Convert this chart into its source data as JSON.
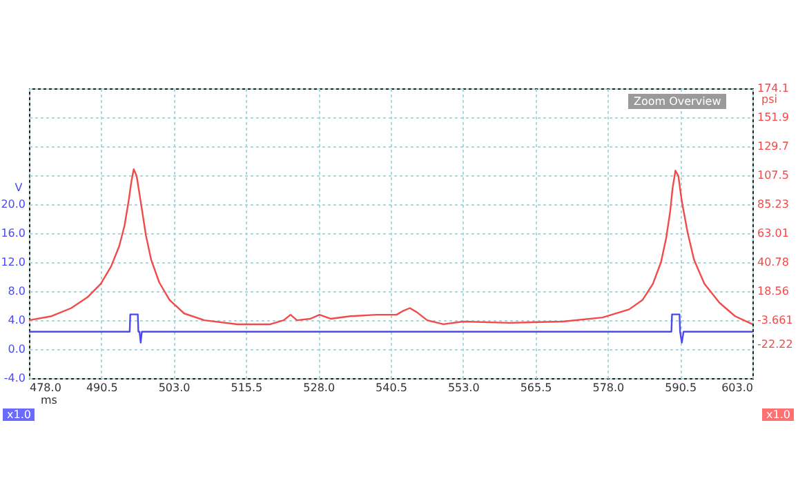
{
  "chart_data": {
    "type": "line",
    "xlabel": "ms",
    "ylabel": "V",
    "y2label": "psi",
    "annotations": [
      "Zoom Overview",
      "x1.0",
      "x1.0"
    ],
    "xlim": [
      478,
      603
    ],
    "xticks": [
      {
        "value": 478,
        "label": "478.0"
      },
      490.5,
      {
        "value": 503,
        "label": "503.0"
      },
      515.5,
      {
        "value": 528,
        "label": "528.0"
      },
      540.5,
      {
        "value": 553,
        "label": "553.0"
      },
      565.5,
      {
        "value": 578,
        "label": "578.0"
      },
      590.5,
      {
        "value": 603,
        "label": "603.0"
      }
    ],
    "ylim": [
      -4,
      36
    ],
    "yticks": [
      {
        "value": -4,
        "label": "-4.0"
      },
      {
        "value": 0,
        "label": "0.0"
      },
      {
        "value": 4,
        "label": "4.0"
      },
      {
        "value": 8,
        "label": "8.0"
      },
      {
        "value": 12,
        "label": "12.0"
      },
      {
        "value": 16,
        "label": "16.0"
      },
      {
        "value": 20,
        "label": "20.0"
      },
      {
        "value": 24,
        "label": null
      },
      {
        "value": 28,
        "label": null
      },
      {
        "value": 32,
        "label": null
      },
      {
        "value": 36,
        "label": null
      }
    ],
    "y2lim": [
      -48.1,
      174.1
    ],
    "y2ticks": [
      -22.22,
      -3.661,
      18.56,
      40.78,
      63.01,
      85.23,
      107.5,
      129.7,
      151.9,
      174.1
    ],
    "grid": true,
    "marker": "none",
    "line_style": "solid",
    "series": [
      {
        "color": "#f04a4a",
        "axis": "y2",
        "x": [
          478,
          481.9,
          485.3,
          488.1,
          490.4,
          492.2,
          493.6,
          494.5,
          495.2,
          495.7,
          496.1,
          496.6,
          497.3,
          498.2,
          499.1,
          500.5,
          502.3,
          504.8,
          508.3,
          514.0,
          519.7,
          522.0,
          523.2,
          524.3,
          526.6,
          528.2,
          530.1,
          533.5,
          538.1,
          541.5,
          542.7,
          543.8,
          545.0,
          546.8,
          549.6,
          553.0,
          561.0,
          570.2,
          577.1,
          581.7,
          584.0,
          585.8,
          587.2,
          588.1,
          588.8,
          589.2,
          589.7,
          590.2,
          590.8,
          591.8,
          592.9,
          594.7,
          597.3,
          600.0,
          603.0
        ],
        "values": [
          -3.7,
          -0.6,
          5.6,
          13.9,
          24.2,
          37.7,
          53.2,
          68.7,
          87.3,
          102.8,
          112.1,
          106.9,
          87.3,
          61.4,
          42.8,
          25.3,
          11.8,
          1.5,
          -3.7,
          -6.8,
          -6.8,
          -3.7,
          0.5,
          -3.7,
          -2.6,
          0.5,
          -2.6,
          -0.6,
          0.5,
          0.5,
          3.6,
          5.6,
          2.5,
          -3.7,
          -6.8,
          -4.7,
          -5.7,
          -4.7,
          -1.6,
          4.6,
          11.8,
          24.2,
          40.8,
          59.4,
          80.1,
          97.6,
          111.0,
          106.9,
          87.3,
          63.5,
          42.8,
          24.2,
          9.7,
          -0.6,
          -6.8
        ]
      },
      {
        "color": "#4a4af0",
        "x": [
          478,
          495.4,
          495.5,
          496.8,
          496.9,
          497.1,
          497.3,
          497.5,
          589.0,
          589.1,
          590.4,
          590.5,
          590.8,
          591.1,
          603
        ],
        "values": [
          2.4,
          2.4,
          4.8,
          4.8,
          2.4,
          2.4,
          0.9,
          2.4,
          2.4,
          4.8,
          4.8,
          2.4,
          0.9,
          2.4,
          2.4
        ]
      }
    ]
  }
}
